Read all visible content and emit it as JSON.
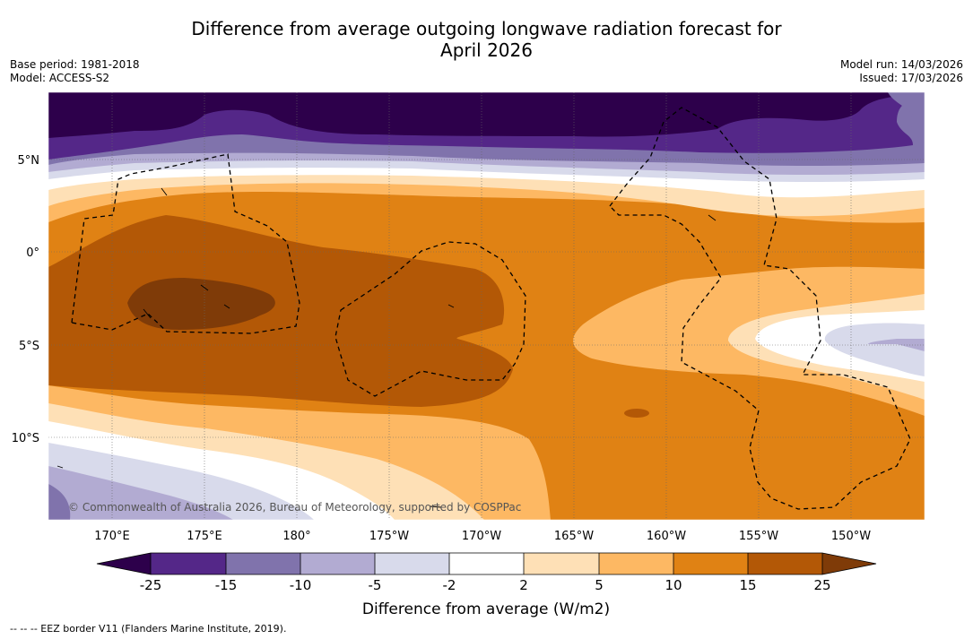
{
  "title_line1": "Difference from average outgoing longwave radiation forecast for",
  "title_line2": "April 2026",
  "meta_left": {
    "base_period": "Base period: 1981-2018",
    "model": "Model: ACCESS-S2"
  },
  "meta_right": {
    "model_run": "Model run: 14/03/2026",
    "issued": "Issued: 17/03/2026"
  },
  "lat_ticks": [
    "5°N",
    "0°",
    "5°S",
    "10°S"
  ],
  "lon_ticks": [
    "170°E",
    "175°E",
    "180°",
    "175°W",
    "170°W",
    "165°W",
    "160°W",
    "155°W",
    "150°W"
  ],
  "copyright": "© Commonwealth of Australia 2026, Bureau of Meteorology, supported by COSPPac",
  "colorbar": {
    "title": "Difference from average (W/m2)",
    "tick_labels": [
      "-25",
      "-15",
      "-10",
      "-5",
      "-2",
      "2",
      "5",
      "10",
      "15",
      "25"
    ],
    "colors": [
      "#2d004b",
      "#542788",
      "#8073ac",
      "#b2abd2",
      "#d8daeb",
      "#ffffff",
      "#fee0b6",
      "#fdb863",
      "#e08214",
      "#b35806",
      "#7f3b08"
    ]
  },
  "footer": "--  --  -- EEZ border V11 (Flanders Marine Institute, 2019)."
}
